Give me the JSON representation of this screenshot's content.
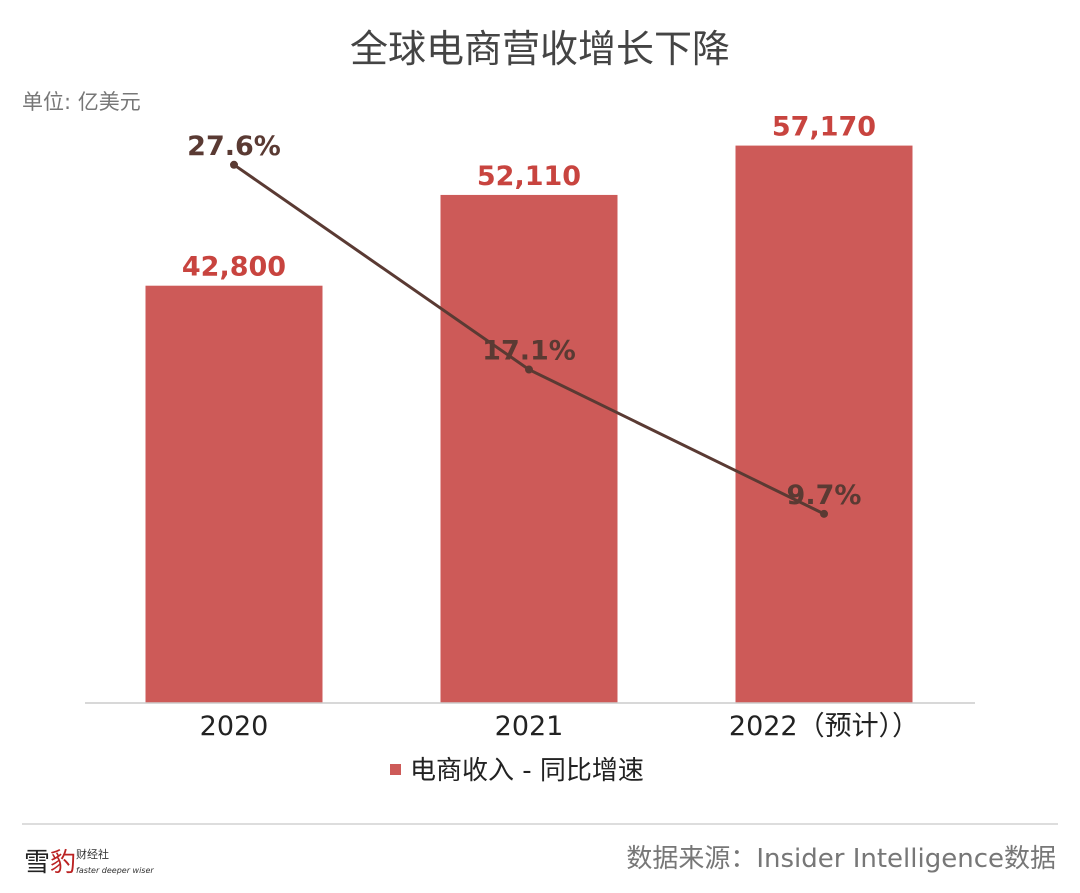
{
  "chart_data": {
    "type": "bar",
    "title": "全球电商营收增长下降",
    "unit_label": "单位: 亿美元",
    "categories": [
      "2020",
      "2021",
      "2022（预计））"
    ],
    "series": [
      {
        "name": "电商收入",
        "type": "bar",
        "values": [
          42800,
          52110,
          57170
        ],
        "labels": [
          "42,800",
          "52,110",
          "57,170"
        ],
        "color": "#cd5a58",
        "label_color": "#c8443f"
      },
      {
        "name": "同比增速",
        "type": "line",
        "axis": "secondary",
        "values": [
          27.6,
          17.1,
          9.7
        ],
        "labels": [
          "27.6%",
          "17.1%",
          "9.7%"
        ],
        "color": "#5a3a33"
      }
    ],
    "ylim": [
      0,
      60000
    ],
    "y2lim": [
      0,
      30
    ],
    "grid": false,
    "legend": {
      "position": "bottom",
      "text": "电商收入 - 同比增速"
    }
  },
  "footer": {
    "source": "数据来源：Insider Intelligence数据",
    "logo_text": "雪豹财经社",
    "logo_tagline": "faster deeper wiser"
  }
}
